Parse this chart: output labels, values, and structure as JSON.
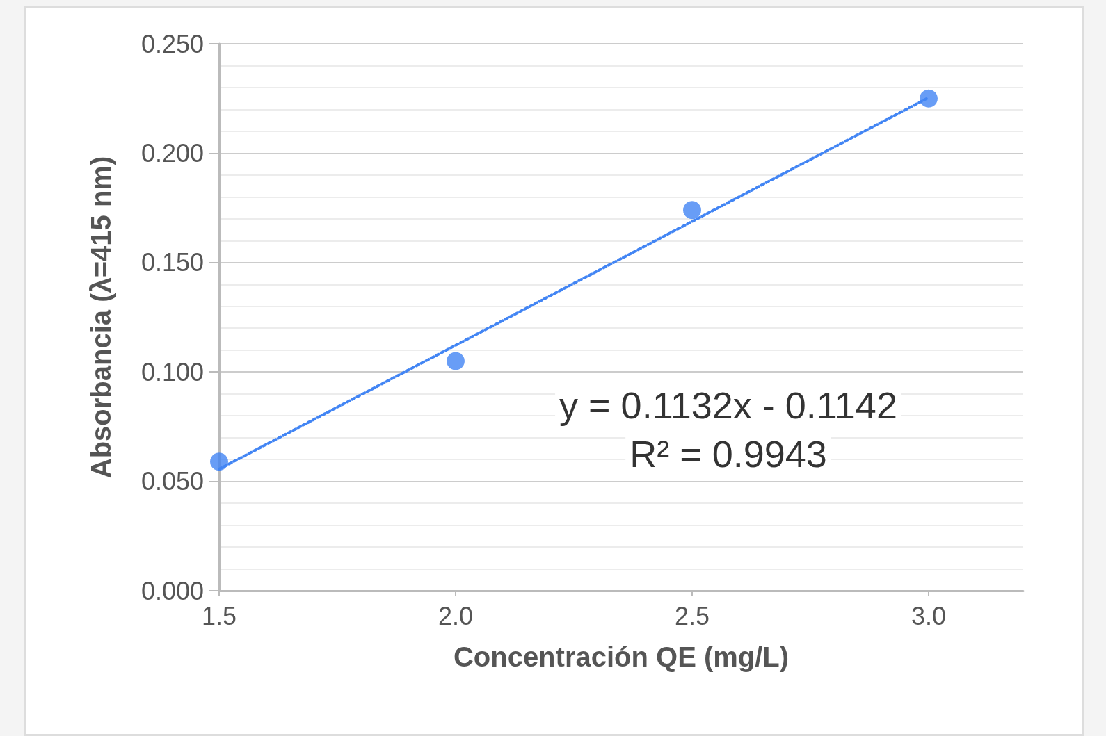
{
  "chart_data": {
    "type": "scatter",
    "xlabel": "Concentración QE (mg/L)",
    "ylabel": "Absorbancia (λ=415 nm)",
    "xlim": [
      1.5,
      3.2
    ],
    "xticks": [
      1.5,
      {
        "value": 2,
        "label": "2.0"
      },
      2.5,
      {
        "value": 3,
        "label": "3.0"
      }
    ],
    "ylim": [
      0,
      0.25
    ],
    "yticks": [
      {
        "value": 0,
        "label": "0.000"
      },
      {
        "value": 0.05,
        "label": "0.050"
      },
      {
        "value": 0.1,
        "label": "0.100"
      },
      {
        "value": 0.15,
        "label": "0.150"
      },
      {
        "value": 0.2,
        "label": "0.200"
      },
      {
        "value": 0.25,
        "label": "0.250"
      }
    ],
    "grid": "y",
    "annotations": [
      "y = 0.1132x - 0.1142",
      "R² = 0.9943"
    ],
    "series": [
      {
        "type": "scatter",
        "color": "#4285f4",
        "marker": "circle",
        "x": [
          1.5,
          2.0,
          2.5,
          3.0
        ],
        "values": [
          0.059,
          0.105,
          0.174,
          0.225
        ]
      },
      {
        "type": "line",
        "color": "#4285f4",
        "marker": "none",
        "line_style": "dotted",
        "x": [
          1.5,
          3.0
        ],
        "values": [
          0.0556,
          0.2254
        ]
      }
    ]
  }
}
